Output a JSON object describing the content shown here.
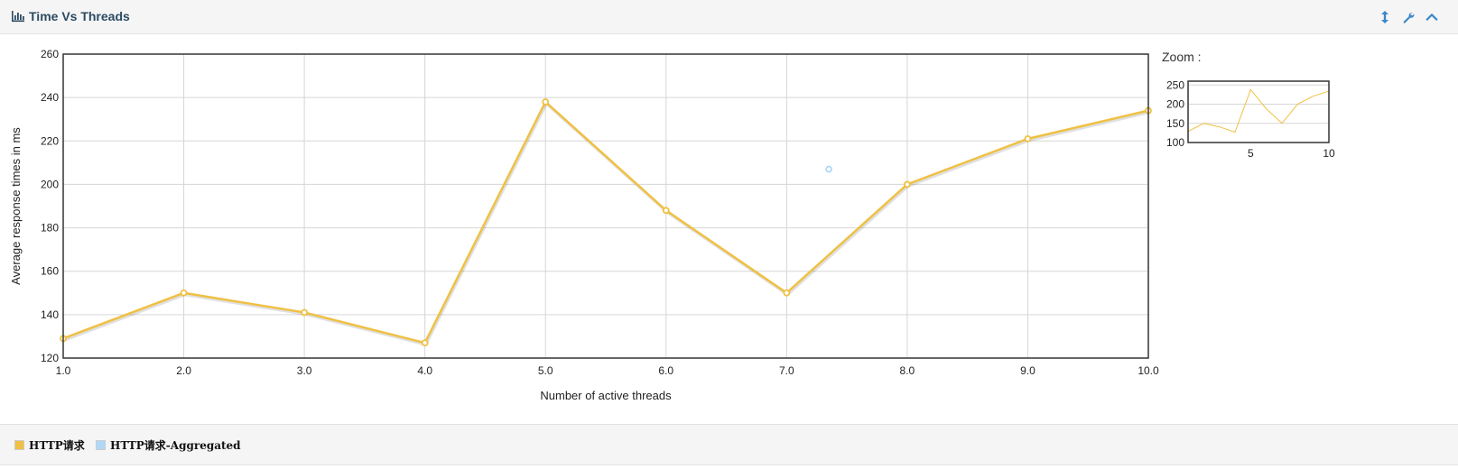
{
  "header": {
    "title": "Time Vs Threads",
    "icon": "bar-chart-icon",
    "tools": [
      {
        "name": "resize-icon",
        "label": "↕"
      },
      {
        "name": "wrench-icon",
        "label": "settings"
      },
      {
        "name": "chevron-up-icon",
        "label": "collapse"
      }
    ]
  },
  "zoom": {
    "label": "Zoom :"
  },
  "legend": [
    {
      "label": "HTTP请求",
      "color": "#f0c043"
    },
    {
      "label": "HTTP请求-Aggregated",
      "color": "#afd8f8"
    }
  ],
  "chart_data": {
    "type": "line",
    "xlabel": "Number of active threads",
    "ylabel": "Average response times in ms",
    "xlim": [
      1,
      10
    ],
    "ylim": [
      120,
      260
    ],
    "xticks": [
      "1.0",
      "2.0",
      "3.0",
      "4.0",
      "5.0",
      "6.0",
      "7.0",
      "8.0",
      "9.0",
      "10.0"
    ],
    "yticks": [
      120,
      140,
      160,
      180,
      200,
      220,
      240,
      260
    ],
    "grid": true,
    "series": [
      {
        "name": "HTTP请求",
        "color": "#f0c043",
        "x": [
          1,
          2,
          3,
          4,
          5,
          6,
          7,
          8,
          9,
          10
        ],
        "y": [
          129,
          150,
          141,
          127,
          238,
          188,
          150,
          200,
          221,
          234
        ]
      },
      {
        "name": "HTTP请求-Aggregated",
        "color": "#afd8f8",
        "x": [
          7.35
        ],
        "y": [
          207
        ]
      }
    ],
    "overview": {
      "xticks": [
        5,
        10
      ],
      "yticks": [
        100,
        150,
        200,
        250
      ],
      "ylim": [
        100,
        260
      ],
      "xlim": [
        1,
        10
      ]
    }
  }
}
